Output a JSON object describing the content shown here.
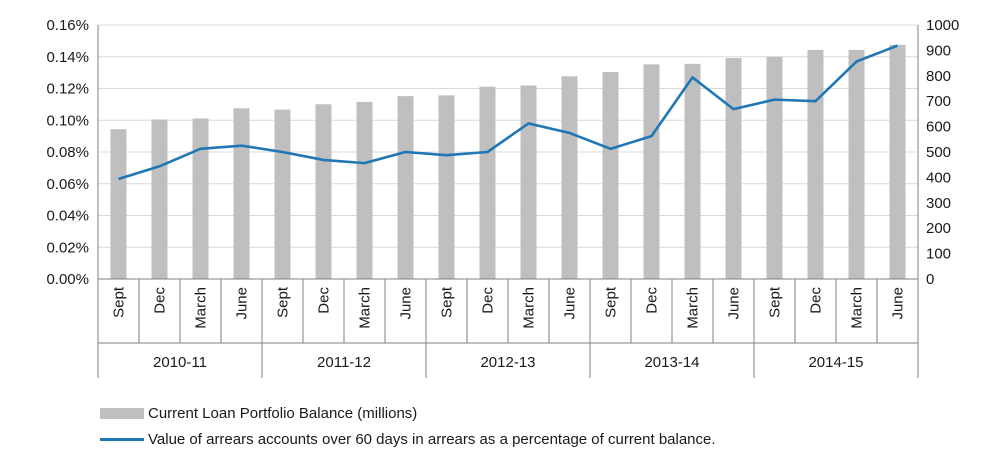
{
  "chart_data": {
    "type": "bar",
    "categories": [
      "Sept",
      "Dec",
      "March",
      "June",
      "Sept",
      "Dec",
      "March",
      "June",
      "Sept",
      "Dec",
      "March",
      "June",
      "Sept",
      "Dec",
      "March",
      "June",
      "Sept",
      "Dec",
      "March",
      "June"
    ],
    "groups": [
      "2010-11",
      "2011-12",
      "2012-13",
      "2013-14",
      "2014-15"
    ],
    "series": [
      {
        "name": "Current Loan Portfolio Balance (millions)",
        "type": "bar",
        "axis": "right",
        "color": "#bfbfbf",
        "values": [
          590,
          628,
          632,
          672,
          667,
          688,
          697,
          720,
          723,
          757,
          762,
          798,
          815,
          845,
          847,
          870,
          875,
          902,
          902,
          922
        ]
      },
      {
        "name": "Value of arrears accounts over 60 days in arrears as a percentage of current balance.",
        "type": "line",
        "axis": "left",
        "color": "#1f77b4",
        "values": [
          0.00063,
          0.00071,
          0.00082,
          0.00084,
          0.0008,
          0.00075,
          0.00073,
          0.0008,
          0.00078,
          0.0008,
          0.00098,
          0.00092,
          0.00082,
          0.0009,
          0.00127,
          0.00107,
          0.00113,
          0.00112,
          0.00137,
          0.00147
        ]
      }
    ],
    "y_left": {
      "ticks": [
        "0.00%",
        "0.02%",
        "0.04%",
        "0.06%",
        "0.08%",
        "0.10%",
        "0.12%",
        "0.14%",
        "0.16%"
      ],
      "ylim": [
        0,
        0.0016
      ]
    },
    "y_right": {
      "ticks": [
        "0",
        "100",
        "200",
        "300",
        "400",
        "500",
        "600",
        "700",
        "800",
        "900",
        "1000"
      ],
      "ylim": [
        0,
        1000
      ]
    },
    "grid": true,
    "legend_position": "bottom-left"
  }
}
